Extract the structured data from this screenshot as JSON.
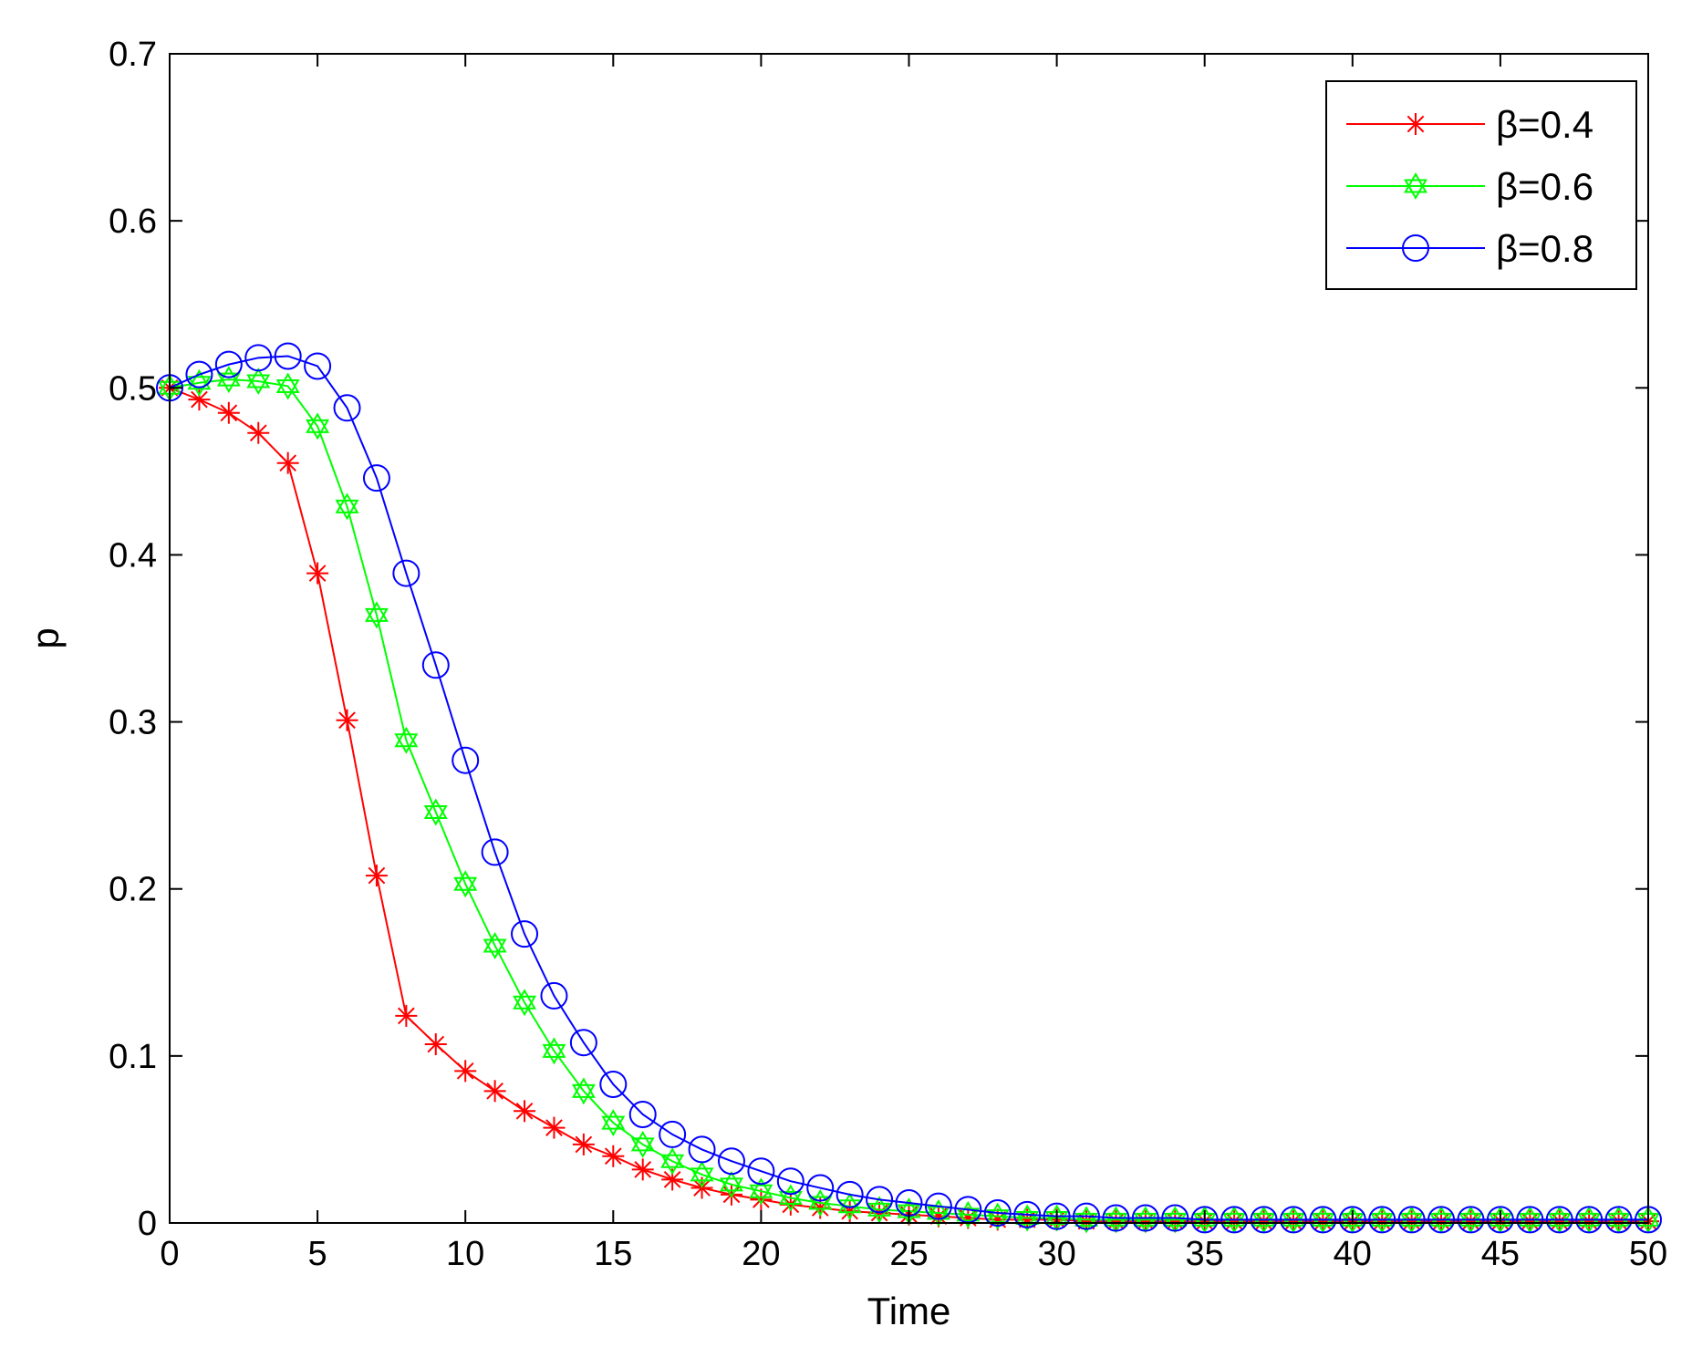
{
  "chart_data": {
    "type": "line",
    "title": "",
    "xlabel": "Time",
    "ylabel": "p",
    "xlim": [
      0,
      50
    ],
    "ylim": [
      0,
      0.7
    ],
    "x_ticks": [
      "0",
      "5",
      "10",
      "15",
      "20",
      "25",
      "30",
      "35",
      "40",
      "45",
      "50"
    ],
    "y_ticks": [
      "0",
      "0.1",
      "0.2",
      "0.3",
      "0.4",
      "0.5",
      "0.6",
      "0.7"
    ],
    "grid": false,
    "legend_position": "top-right",
    "x": [
      0,
      1,
      2,
      3,
      4,
      5,
      6,
      7,
      8,
      9,
      10,
      11,
      12,
      13,
      14,
      15,
      16,
      17,
      18,
      19,
      20,
      21,
      22,
      23,
      24,
      25,
      26,
      27,
      28,
      29,
      30,
      31,
      32,
      33,
      34,
      35,
      36,
      37,
      38,
      39,
      40,
      41,
      42,
      43,
      44,
      45,
      46,
      47,
      48,
      49,
      50
    ],
    "series": [
      {
        "name": "β=0.4",
        "color": "#ff0000",
        "marker": "asterisk",
        "values": [
          0.5,
          0.493,
          0.485,
          0.473,
          0.455,
          0.389,
          0.301,
          0.208,
          0.124,
          0.107,
          0.091,
          0.079,
          0.067,
          0.057,
          0.047,
          0.04,
          0.032,
          0.026,
          0.021,
          0.017,
          0.014,
          0.011,
          0.009,
          0.007,
          0.006,
          0.005,
          0.004,
          0.003,
          0.002,
          0.002,
          0.002,
          0.001,
          0.001,
          0.001,
          0.001,
          0.001,
          0.001,
          0.001,
          0.001,
          0.001,
          0.001,
          0.001,
          0.001,
          0.001,
          0.001,
          0.001,
          0.001,
          0.001,
          0.001,
          0.001,
          0.001
        ]
      },
      {
        "name": "β=0.6",
        "color": "#00ff00",
        "marker": "hexagram",
        "values": [
          0.5,
          0.503,
          0.505,
          0.504,
          0.501,
          0.477,
          0.429,
          0.364,
          0.289,
          0.246,
          0.203,
          0.166,
          0.132,
          0.103,
          0.079,
          0.06,
          0.047,
          0.037,
          0.029,
          0.023,
          0.019,
          0.015,
          0.012,
          0.01,
          0.008,
          0.007,
          0.006,
          0.005,
          0.004,
          0.003,
          0.003,
          0.002,
          0.002,
          0.002,
          0.002,
          0.002,
          0.002,
          0.002,
          0.002,
          0.002,
          0.002,
          0.002,
          0.002,
          0.002,
          0.002,
          0.002,
          0.002,
          0.002,
          0.002,
          0.002,
          0.002
        ]
      },
      {
        "name": "β=0.8",
        "color": "#0000ff",
        "marker": "circle",
        "values": [
          0.5,
          0.508,
          0.514,
          0.518,
          0.519,
          0.513,
          0.488,
          0.446,
          0.389,
          0.334,
          0.277,
          0.222,
          0.173,
          0.136,
          0.108,
          0.083,
          0.065,
          0.053,
          0.044,
          0.037,
          0.031,
          0.025,
          0.021,
          0.017,
          0.014,
          0.012,
          0.01,
          0.008,
          0.006,
          0.005,
          0.004,
          0.004,
          0.003,
          0.003,
          0.003,
          0.002,
          0.002,
          0.002,
          0.002,
          0.002,
          0.002,
          0.002,
          0.002,
          0.002,
          0.002,
          0.002,
          0.002,
          0.002,
          0.002,
          0.002,
          0.002
        ]
      }
    ]
  }
}
